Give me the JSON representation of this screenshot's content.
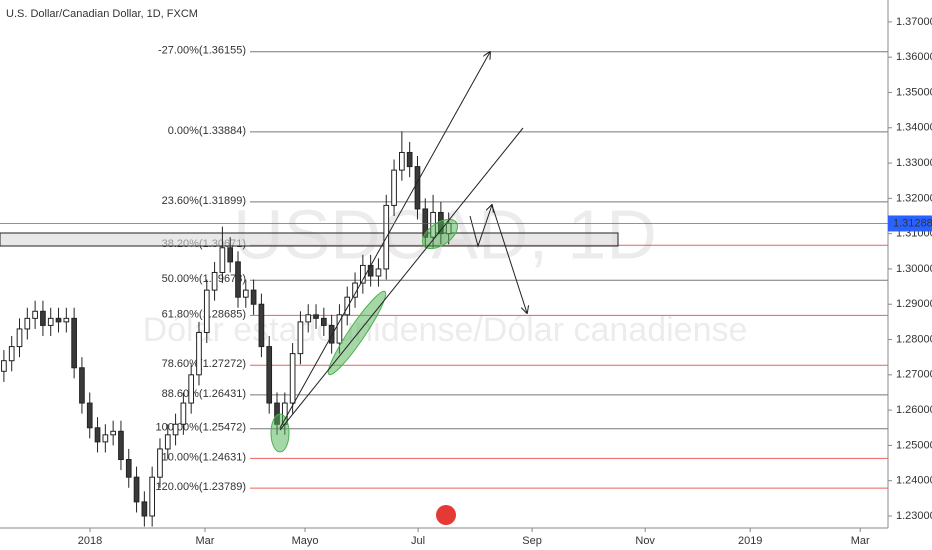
{
  "chart_data": {
    "type": "candlestick",
    "title": "U.S. Dollar/Canadian Dollar, 1D, FXCM",
    "watermark": "USDCAD, 1D",
    "watermark_subtitle": "Dólar estadounidense/Dólar canadiense",
    "up_color": "#ffffff",
    "down_color": "#3a3a3a",
    "open": [
      1.271,
      1.274,
      1.278,
      1.283,
      1.286,
      1.288,
      1.284,
      1.286,
      1.285,
      1.286,
      1.272,
      1.262,
      1.255,
      1.251,
      1.253,
      1.254,
      1.246,
      1.241,
      1.234,
      1.23,
      1.241,
      1.249,
      1.253,
      1.256,
      1.262,
      1.27,
      1.282,
      1.294,
      1.299,
      1.306,
      1.302,
      1.292,
      1.294,
      1.29,
      1.278,
      1.262,
      1.256,
      1.262,
      1.276,
      1.285,
      1.287,
      1.286,
      1.284,
      1.279,
      1.287,
      1.292,
      1.296,
      1.301,
      1.298,
      1.3,
      1.318,
      1.328,
      1.333,
      1.329,
      1.317,
      1.309,
      1.316,
      1.31
    ],
    "high": [
      1.277,
      1.281,
      1.286,
      1.289,
      1.291,
      1.291,
      1.289,
      1.289,
      1.289,
      1.289,
      1.275,
      1.265,
      1.258,
      1.256,
      1.257,
      1.257,
      1.249,
      1.244,
      1.237,
      1.244,
      1.252,
      1.256,
      1.259,
      1.265,
      1.273,
      1.285,
      1.297,
      1.302,
      1.312,
      1.309,
      1.305,
      1.297,
      1.297,
      1.293,
      1.281,
      1.265,
      1.265,
      1.279,
      1.288,
      1.29,
      1.29,
      1.289,
      1.287,
      1.29,
      1.295,
      1.299,
      1.304,
      1.304,
      1.303,
      1.321,
      1.331,
      1.339,
      1.336,
      1.332,
      1.32,
      1.321,
      1.319,
      1.316
    ],
    "low": [
      1.268,
      1.271,
      1.275,
      1.28,
      1.283,
      1.281,
      1.281,
      1.282,
      1.282,
      1.269,
      1.259,
      1.252,
      1.248,
      1.248,
      1.25,
      1.243,
      1.238,
      1.231,
      1.227,
      1.227,
      1.238,
      1.246,
      1.25,
      1.253,
      1.259,
      1.267,
      1.279,
      1.291,
      1.296,
      1.299,
      1.289,
      1.289,
      1.287,
      1.275,
      1.259,
      1.253,
      1.253,
      1.259,
      1.273,
      1.282,
      1.283,
      1.281,
      1.276,
      1.276,
      1.284,
      1.289,
      1.293,
      1.295,
      1.295,
      1.297,
      1.315,
      1.325,
      1.326,
      1.314,
      1.306,
      1.306,
      1.307,
      1.307
    ],
    "close": [
      1.274,
      1.278,
      1.283,
      1.286,
      1.288,
      1.284,
      1.286,
      1.285,
      1.286,
      1.272,
      1.262,
      1.255,
      1.251,
      1.253,
      1.254,
      1.246,
      1.241,
      1.234,
      1.23,
      1.241,
      1.249,
      1.253,
      1.256,
      1.262,
      1.27,
      1.282,
      1.294,
      1.299,
      1.306,
      1.302,
      1.292,
      1.294,
      1.29,
      1.278,
      1.262,
      1.256,
      1.262,
      1.276,
      1.285,
      1.287,
      1.286,
      1.284,
      1.279,
      1.287,
      1.292,
      1.296,
      1.301,
      1.298,
      1.3,
      1.318,
      1.328,
      1.333,
      1.329,
      1.317,
      1.309,
      1.316,
      1.31,
      1.31288
    ],
    "last_price": 1.31288,
    "last_price_color": "#2962ff",
    "xlim": [
      -0.5,
      113.3
    ],
    "xticks": [
      {
        "value": 11.03,
        "label": "2018"
      },
      {
        "value": 25.77,
        "label": "Mar"
      },
      {
        "value": 38.59,
        "label": "Mayo"
      },
      {
        "value": 53.08,
        "label": "Jul"
      },
      {
        "value": 67.69,
        "label": "Sep"
      },
      {
        "value": 82.18,
        "label": "Nov"
      },
      {
        "value": 95.64,
        "label": "2019"
      },
      {
        "value": 109.74,
        "label": "Mar"
      }
    ],
    "ylim": [
      1.2266,
      1.3762
    ],
    "yticks": [
      {
        "value": 1.23,
        "label": "1.23000"
      },
      {
        "value": 1.24,
        "label": "1.24000"
      },
      {
        "value": 1.25,
        "label": "1.25000"
      },
      {
        "value": 1.26,
        "label": "1.26000"
      },
      {
        "value": 1.27,
        "label": "1.27000"
      },
      {
        "value": 1.28,
        "label": "1.28000"
      },
      {
        "value": 1.29,
        "label": "1.29000"
      },
      {
        "value": 1.3,
        "label": "1.30000"
      },
      {
        "value": 1.31,
        "label": "1.31000"
      },
      {
        "value": 1.32,
        "label": "1.32000"
      },
      {
        "value": 1.33,
        "label": "1.33000"
      },
      {
        "value": 1.34,
        "label": "1.34000"
      },
      {
        "value": 1.35,
        "label": "1.35000"
      },
      {
        "value": 1.36,
        "label": "1.36000"
      },
      {
        "value": 1.37,
        "label": "1.37000"
      }
    ],
    "fib_levels": [
      {
        "value": 1.36155,
        "label": "-27.00%(1.36155)",
        "color": "#555555"
      },
      {
        "value": 1.33884,
        "label": "0.00%(1.33884)",
        "color": "#555555"
      },
      {
        "value": 1.31899,
        "label": "23.60%(1.31899)",
        "color": "#555555"
      },
      {
        "value": 1.30671,
        "label": "38.20%(1.30671)",
        "color": "#e53935"
      },
      {
        "value": 1.29678,
        "label": "50.00%(1.29678)",
        "color": "#555555"
      },
      {
        "value": 1.28685,
        "label": "61.80%(1.28685)",
        "color": "#e53935"
      },
      {
        "value": 1.27272,
        "label": "78.60%(1.27272)",
        "color": "#e53935"
      },
      {
        "value": 1.26431,
        "label": "88.60%(1.26431)",
        "color": "#555555"
      },
      {
        "value": 1.25472,
        "label": "100.00%(1.25472)",
        "color": "#555555"
      },
      {
        "value": 1.24631,
        "label": "110.00%(1.24631)",
        "color": "#e53935"
      },
      {
        "value": 1.23789,
        "label": "120.00%(1.23789)",
        "color": "#e53935"
      }
    ]
  }
}
